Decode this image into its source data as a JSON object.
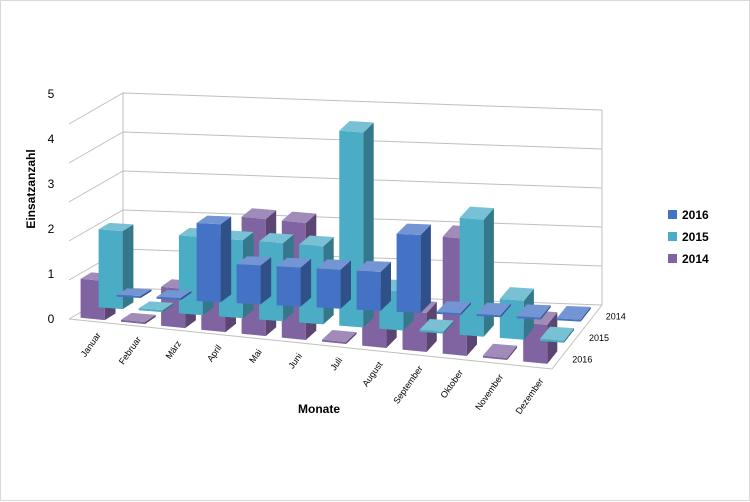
{
  "chart_data": {
    "type": "bar",
    "categories": [
      "Januar",
      "Februar",
      "März",
      "April",
      "Mai",
      "Juni",
      "Juli",
      "August",
      "September",
      "Oktober",
      "November",
      "Dezember"
    ],
    "series": [
      {
        "name": "2016",
        "values": [
          0,
          0,
          2,
          1,
          1,
          1,
          1,
          2,
          0,
          0,
          0,
          0
        ],
        "color": "#4472c4"
      },
      {
        "name": "2015",
        "values": [
          2,
          0,
          2,
          2,
          2,
          2,
          5,
          1,
          0,
          3,
          1,
          0
        ],
        "color": "#4bacc6"
      },
      {
        "name": "2014",
        "values": [
          1,
          0,
          1,
          1,
          3,
          3,
          0,
          1,
          1,
          3,
          0,
          1
        ],
        "color": "#8064a2"
      }
    ],
    "depth_labels": [
      "2014",
      "2015",
      "2016"
    ],
    "yticks": [
      "0",
      "1",
      "2",
      "3",
      "4",
      "5"
    ],
    "ylim": [
      0,
      5
    ],
    "xlabel": "Monate",
    "ylabel": "Einsatzanzahl",
    "legend_position": "right",
    "grid": true
  }
}
